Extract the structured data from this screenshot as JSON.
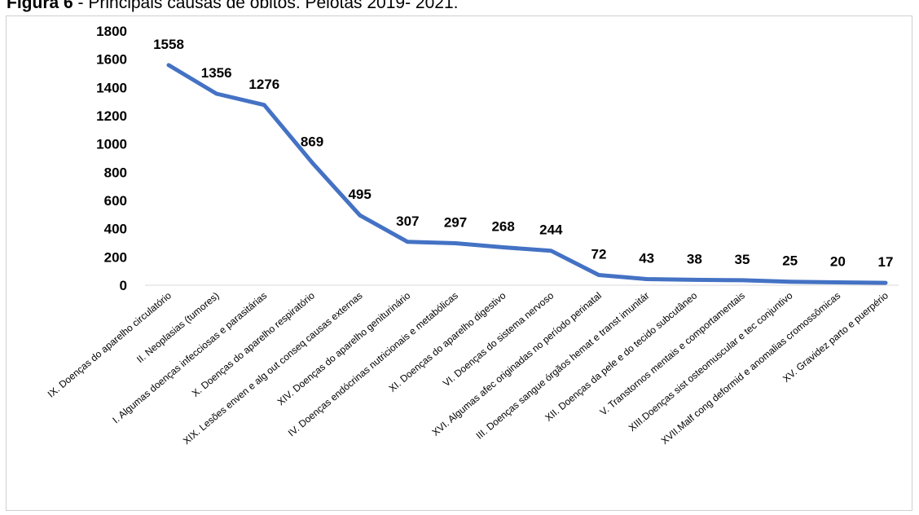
{
  "caption": {
    "prefix": "Figura 6",
    "text": " - Principais causas de óbitos. Pelotas 2019- 2021."
  },
  "chart_data": {
    "type": "line",
    "title": "",
    "xlabel": "",
    "ylabel": "",
    "ylim": [
      0,
      1800
    ],
    "yticks": [
      0,
      200,
      400,
      600,
      800,
      1000,
      1200,
      1400,
      1600,
      1800
    ],
    "grid": false,
    "legend": "none",
    "line_color": "#4472C4",
    "categories": [
      "IX. Doenças do aparelho circulatório",
      "II.  Neoplasias (tumores)",
      "I.  Algumas doenças infecciosas e parasitárias",
      "X.  Doenças do aparelho respiratório",
      "XIX. Lesões enven e alg out conseq causas externas",
      "XIV. Doenças do aparelho geniturinário",
      "IV.  Doenças endócrinas nutricionais e metabólicas",
      "XI.  Doenças do aparelho digestivo",
      "VI.  Doenças do sistema nervoso",
      "XVI. Algumas afec originadas no período perinatal",
      "III. Doenças sangue órgãos hemat e transt imunitár",
      "XII. Doenças da pele e do tecido subcutâneo",
      "V.   Transtornos mentais e comportamentais",
      "XIII.Doenças sist osteomuscular e tec conjuntivo",
      "XVII.Malf cong deformid e anomalias cromossômicas",
      "XV.  Gravidez parto e puerpério"
    ],
    "values": [
      1558,
      1356,
      1276,
      869,
      495,
      307,
      297,
      268,
      244,
      72,
      43,
      38,
      35,
      25,
      20,
      17
    ]
  }
}
